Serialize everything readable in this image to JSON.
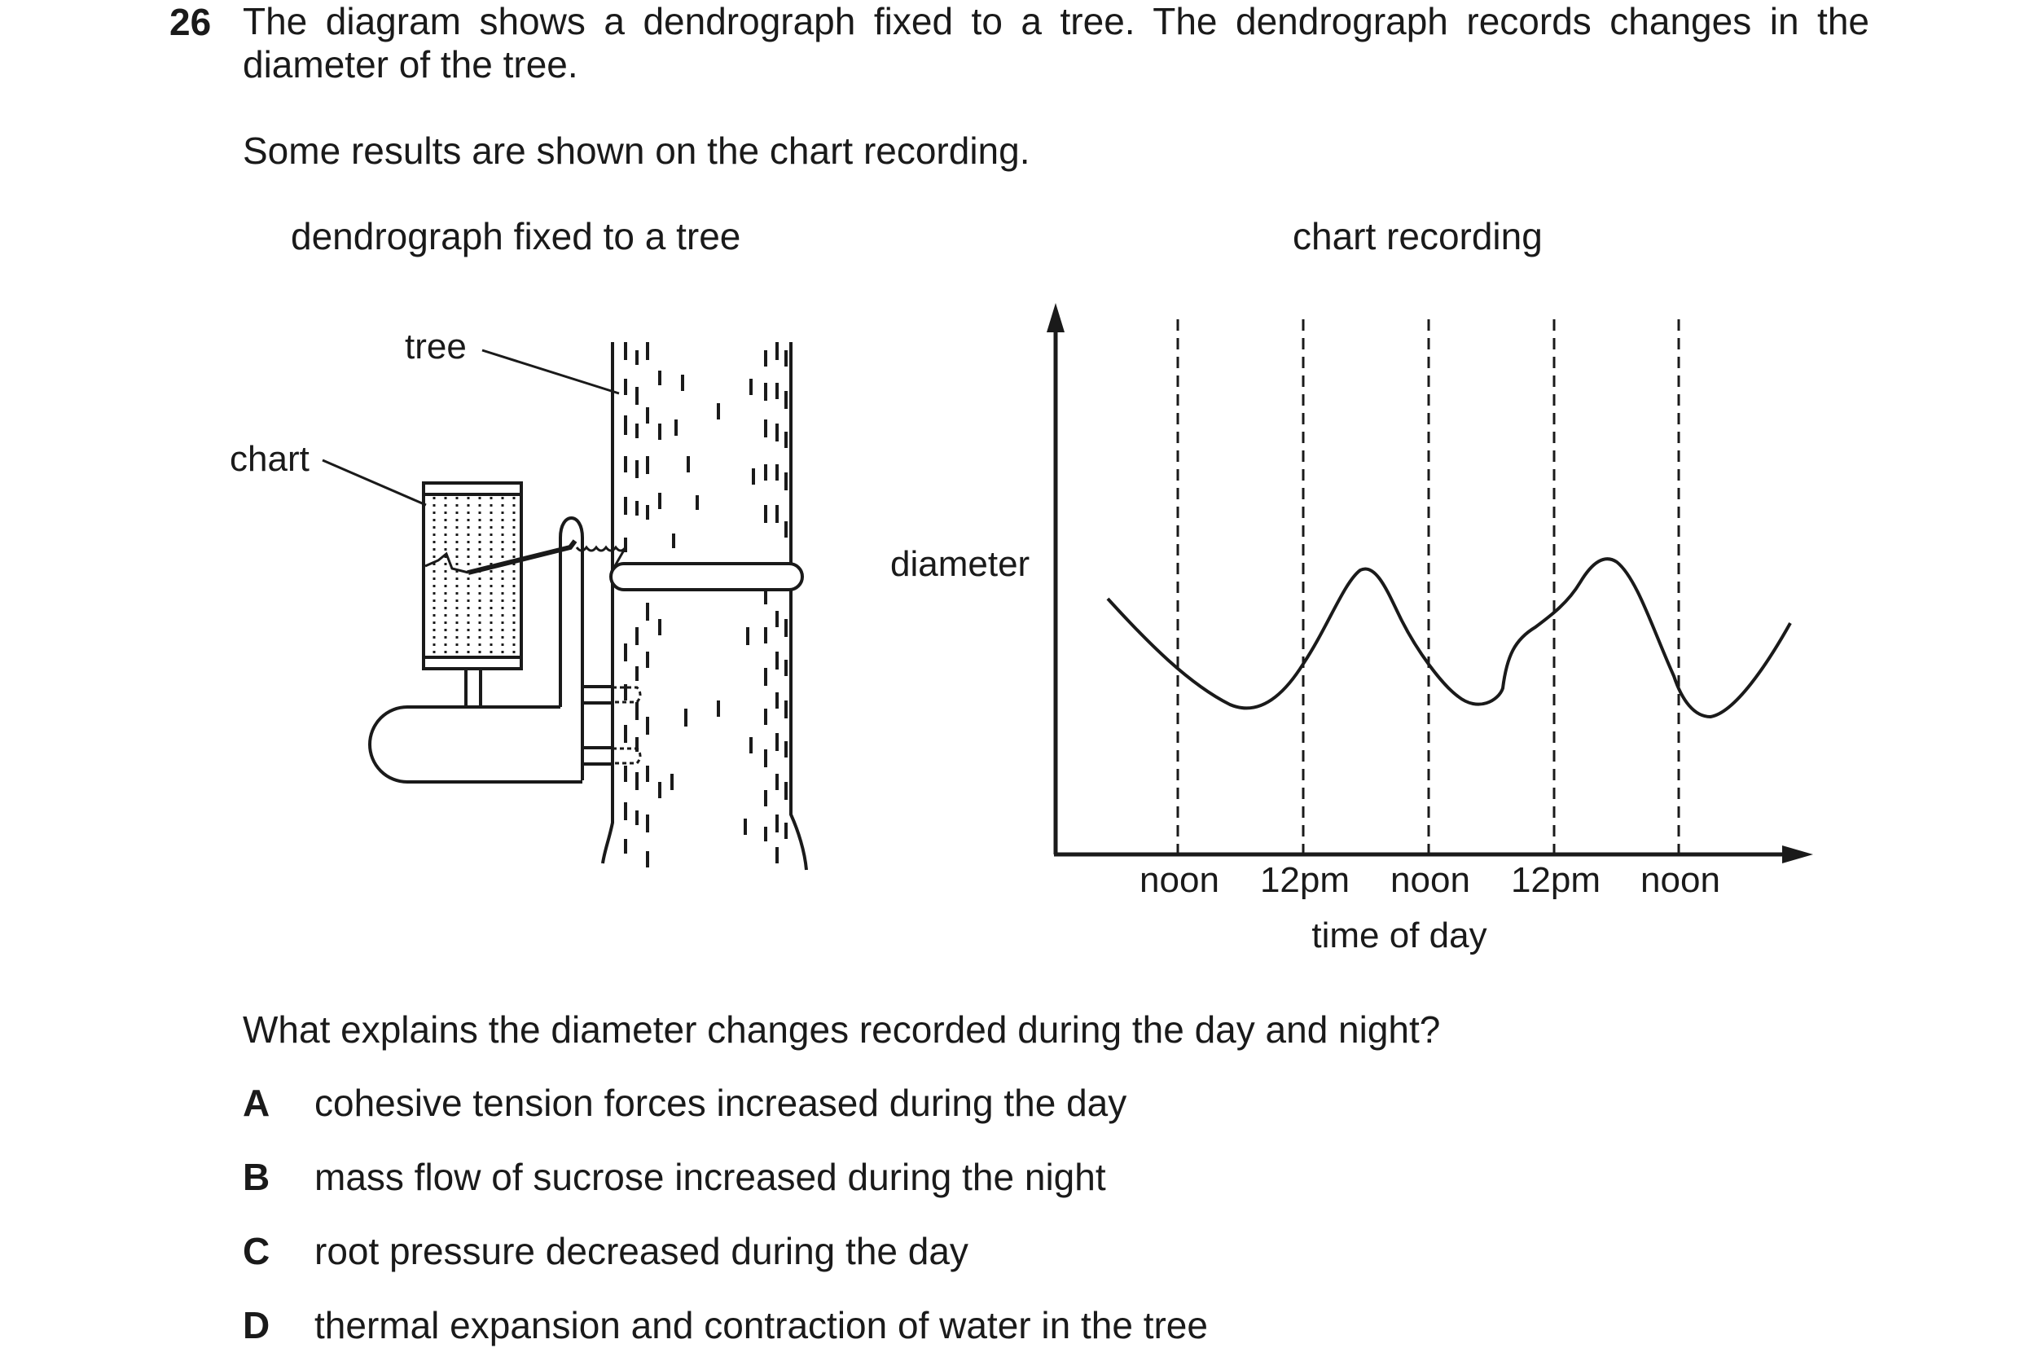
{
  "question": {
    "number": "26",
    "stem": "The diagram shows a dendrograph fixed to a tree. The dendrograph records changes in the diameter of the tree.",
    "intro": "Some results are shown on the chart recording.",
    "prompt": "What explains the diameter changes recorded during the day and night?"
  },
  "figure_left": {
    "caption": "dendrograph fixed to a tree",
    "labels": {
      "tree": "tree",
      "chart": "chart"
    }
  },
  "figure_right": {
    "caption": "chart recording",
    "y_label": "diameter",
    "x_label": "time of day",
    "x_ticks": [
      "noon",
      "12pm",
      "noon",
      "12pm",
      "noon"
    ]
  },
  "options": [
    {
      "letter": "A",
      "text": "cohesive tension forces increased during the day"
    },
    {
      "letter": "B",
      "text": "mass flow of sucrose increased during the night"
    },
    {
      "letter": "C",
      "text": "root pressure decreased during the day"
    },
    {
      "letter": "D",
      "text": "thermal expansion and contraction of water in the tree"
    }
  ]
}
